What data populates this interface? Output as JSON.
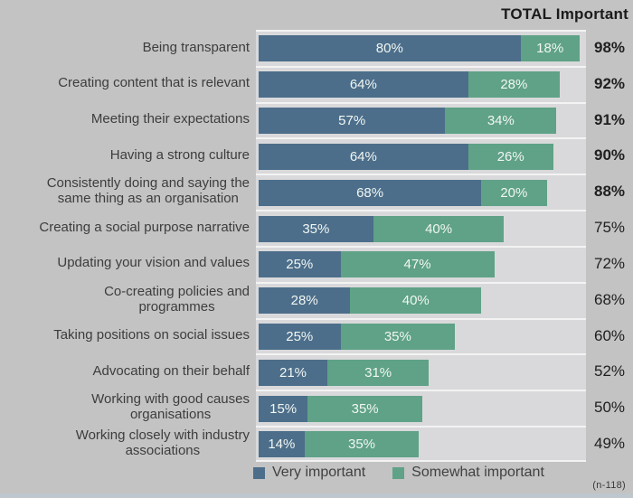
{
  "title": "TOTAL Important",
  "legend": {
    "very": "Very important",
    "somewhat": "Somewhat important"
  },
  "footnote": "(n-118)",
  "colors": {
    "very_important": "#4c6e8a",
    "somewhat_important": "#5fa287",
    "page_background": "#c3c3c3",
    "plot_background": "#d9d9db",
    "total_text": "#202020"
  },
  "chart_data": {
    "type": "bar",
    "orientation": "horizontal",
    "stacked": true,
    "xlim": [
      0,
      100
    ],
    "grid": false,
    "legend_position": "bottom",
    "series_names": [
      "Very important",
      "Somewhat important"
    ],
    "title": "TOTAL Important",
    "rows": [
      {
        "category": "Being transparent",
        "very": 80,
        "somewhat": 18,
        "total": 98,
        "emphasis": true
      },
      {
        "category": "Creating content that is relevant",
        "very": 64,
        "somewhat": 28,
        "total": 92,
        "emphasis": true
      },
      {
        "category": "Meeting their expectations",
        "very": 57,
        "somewhat": 34,
        "total": 91,
        "emphasis": true
      },
      {
        "category": "Having a strong culture",
        "very": 64,
        "somewhat": 26,
        "total": 90,
        "emphasis": true
      },
      {
        "category": "Consistently doing and saying the\nsame thing as an organisation",
        "very": 68,
        "somewhat": 20,
        "total": 88,
        "emphasis": true
      },
      {
        "category": "Creating a social purpose narrative",
        "very": 35,
        "somewhat": 40,
        "total": 75,
        "emphasis": false
      },
      {
        "category": "Updating your vision and values",
        "very": 25,
        "somewhat": 47,
        "total": 72,
        "emphasis": false
      },
      {
        "category": "Co-creating policies and\nprogrammes",
        "very": 28,
        "somewhat": 40,
        "total": 68,
        "emphasis": false
      },
      {
        "category": "Taking positions on social issues",
        "very": 25,
        "somewhat": 35,
        "total": 60,
        "emphasis": false
      },
      {
        "category": "Advocating on their behalf",
        "very": 21,
        "somewhat": 31,
        "total": 52,
        "emphasis": false
      },
      {
        "category": "Working with good causes\norganisations",
        "very": 15,
        "somewhat": 35,
        "total": 50,
        "emphasis": false
      },
      {
        "category": "Working closely with industry\nassociations",
        "very": 14,
        "somewhat": 35,
        "total": 49,
        "emphasis": false
      }
    ]
  }
}
